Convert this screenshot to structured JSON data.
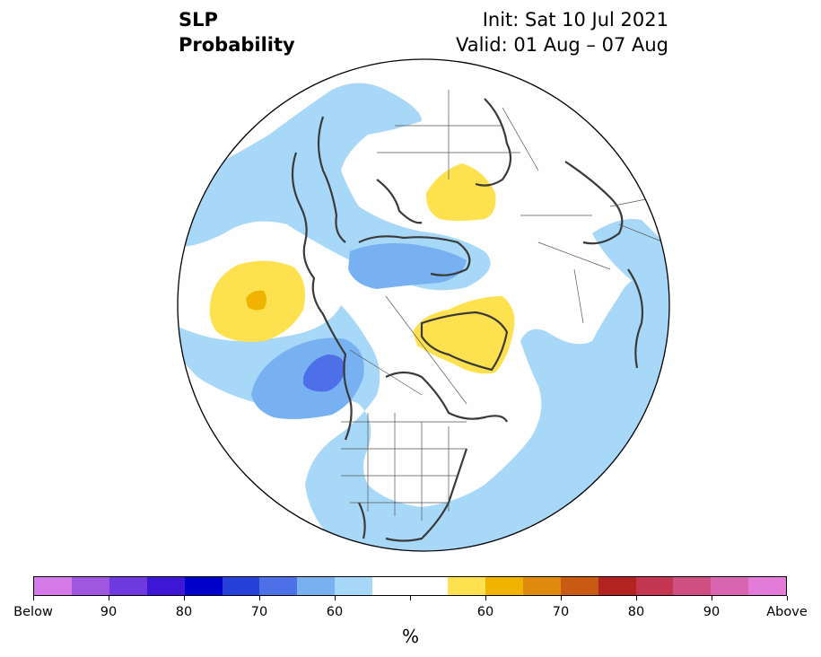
{
  "title": {
    "left_line1": "SLP",
    "left_line2": "Probability",
    "right_line1": "Init: Sat 10 Jul 2021",
    "right_line2": "Valid: 01 Aug – 07 Aug"
  },
  "map": {
    "projection": "north-polar-stereographic",
    "field": "SLP probability",
    "colors": {
      "below_40": "#a8d8f8",
      "below_60": "#77b1f2",
      "below_70": "#4d6fe8",
      "above_40": "#fee14f",
      "above_60": "#f0b400",
      "coastline": "#3a3a3a",
      "border": "#555555"
    }
  },
  "colorbar": {
    "colors": [
      "#d57ae8",
      "#a057e0",
      "#6e3ae0",
      "#3e16d6",
      "#0000cd",
      "#2440d8",
      "#4d6fe8",
      "#77b1f2",
      "#a8d8f8",
      "#ffffff",
      "#ffffff",
      "#fee14f",
      "#f0b400",
      "#de8a0c",
      "#c85a12",
      "#b2221f",
      "#c43550",
      "#cf5080",
      "#d866b0",
      "#e37bd8"
    ],
    "tick_labels": [
      "Below",
      "90",
      "80",
      "70",
      "60",
      "60",
      "70",
      "80",
      "90",
      "Above"
    ],
    "unit": "%"
  }
}
